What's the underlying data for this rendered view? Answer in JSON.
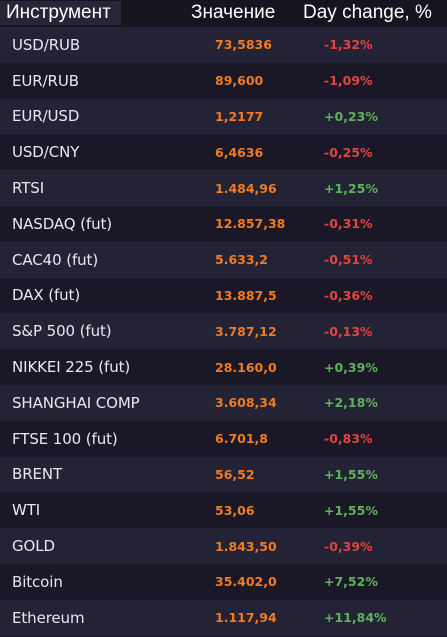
{
  "header": {
    "instrument": "Инструмент",
    "value": "Значение",
    "change": "Day change, %"
  },
  "colors": {
    "value": "#f07b22",
    "negative": "#e0453e",
    "positive": "#5fb25c"
  },
  "rows": [
    {
      "name": "USD/RUB",
      "value": "73,5836",
      "change": "-1,32%",
      "direction": "down"
    },
    {
      "name": "EUR/RUB",
      "value": "89,600",
      "change": "-1,09%",
      "direction": "down"
    },
    {
      "name": "EUR/USD",
      "value": "1,2177",
      "change": "+0,23%",
      "direction": "up"
    },
    {
      "name": "USD/CNY",
      "value": "6,4636",
      "change": "-0,25%",
      "direction": "down"
    },
    {
      "name": "RTSI",
      "value": "1.484,96",
      "change": "+1,25%",
      "direction": "up"
    },
    {
      "name": "NASDAQ (fut)",
      "value": "12.857,38",
      "change": "-0,31%",
      "direction": "down"
    },
    {
      "name": "CAC40 (fut)",
      "value": "5.633,2",
      "change": "-0,51%",
      "direction": "down"
    },
    {
      "name": "DAX (fut)",
      "value": "13.887,5",
      "change": "-0,36%",
      "direction": "down"
    },
    {
      "name": "S&P 500 (fut)",
      "value": "3.787,12",
      "change": "-0,13%",
      "direction": "down"
    },
    {
      "name": "NIKKEI 225 (fut)",
      "value": "28.160,0",
      "change": "+0,39%",
      "direction": "up"
    },
    {
      "name": "SHANGHAI COMP",
      "value": "3.608,34",
      "change": "+2,18%",
      "direction": "up"
    },
    {
      "name": "FTSE 100 (fut)",
      "value": "6.701,8",
      "change": "-0,83%",
      "direction": "down"
    },
    {
      "name": "BRENT",
      "value": "56,52",
      "change": "+1,55%",
      "direction": "up"
    },
    {
      "name": "WTI",
      "value": "53,06",
      "change": "+1,55%",
      "direction": "up"
    },
    {
      "name": "GOLD",
      "value": "1.843,50",
      "change": "-0,39%",
      "direction": "down"
    },
    {
      "name": "Bitcoin",
      "value": "35.402,0",
      "change": "+7,52%",
      "direction": "up"
    },
    {
      "name": "Ethereum",
      "value": "1.117,94",
      "change": "+11,84%",
      "direction": "up"
    }
  ]
}
